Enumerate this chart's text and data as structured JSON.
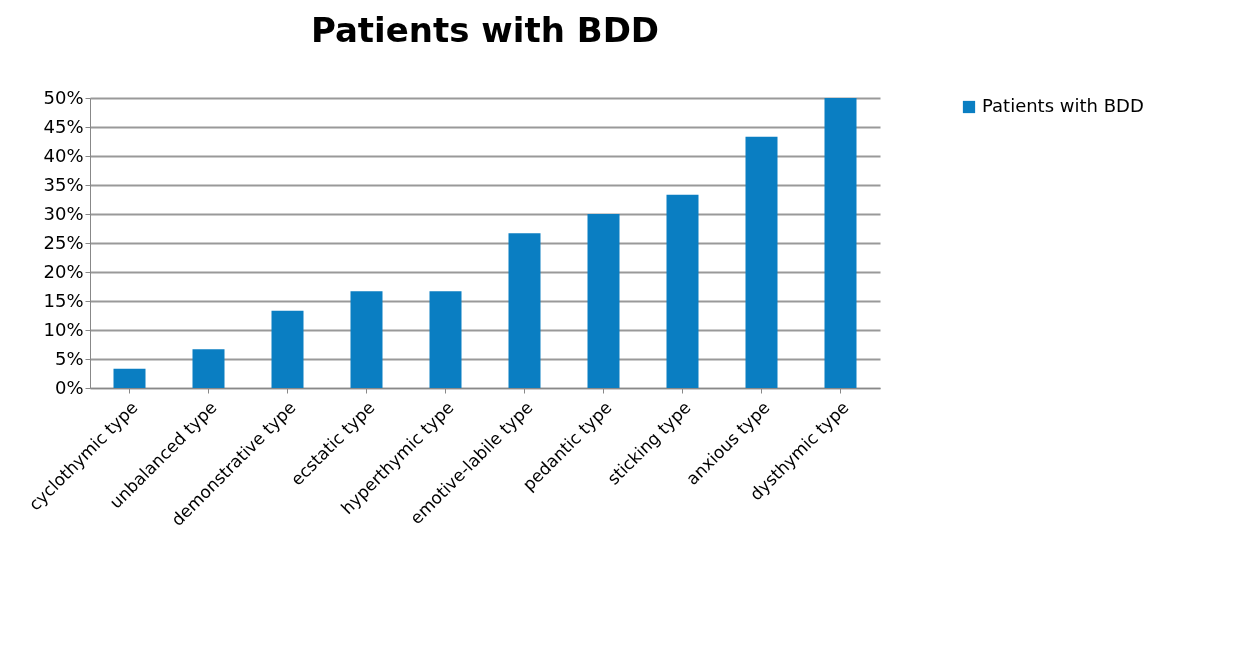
{
  "chart_data": {
    "type": "bar",
    "title": "Patients with BDD",
    "categories": [
      "cyclothymic type",
      "unbalanced type",
      "demonstrative type",
      "ecstatic type",
      "hyperthymic type",
      "emotive-labile type",
      "pedantic type",
      "sticking type",
      "anxious type",
      "dysthymic type"
    ],
    "series": [
      {
        "name": "Patients with BDD",
        "color": "#0a7ec2",
        "values": [
          3.3,
          6.7,
          13.3,
          16.7,
          16.7,
          26.7,
          30,
          33.3,
          43.3,
          50
        ]
      }
    ],
    "ylim": [
      0,
      50
    ],
    "yticks": [
      {
        "value": 0,
        "label": "0%"
      },
      {
        "value": 5,
        "label": "5%"
      },
      {
        "value": 10,
        "label": "10%"
      },
      {
        "value": 15,
        "label": "15%"
      },
      {
        "value": 20,
        "label": "20%"
      },
      {
        "value": 25,
        "label": "25%"
      },
      {
        "value": 30,
        "label": "30%"
      },
      {
        "value": 35,
        "label": "35%"
      },
      {
        "value": 40,
        "label": "40%"
      },
      {
        "value": 45,
        "label": "45%"
      },
      {
        "value": 50,
        "label": "50%"
      }
    ],
    "grid": "y",
    "legend": "right"
  }
}
